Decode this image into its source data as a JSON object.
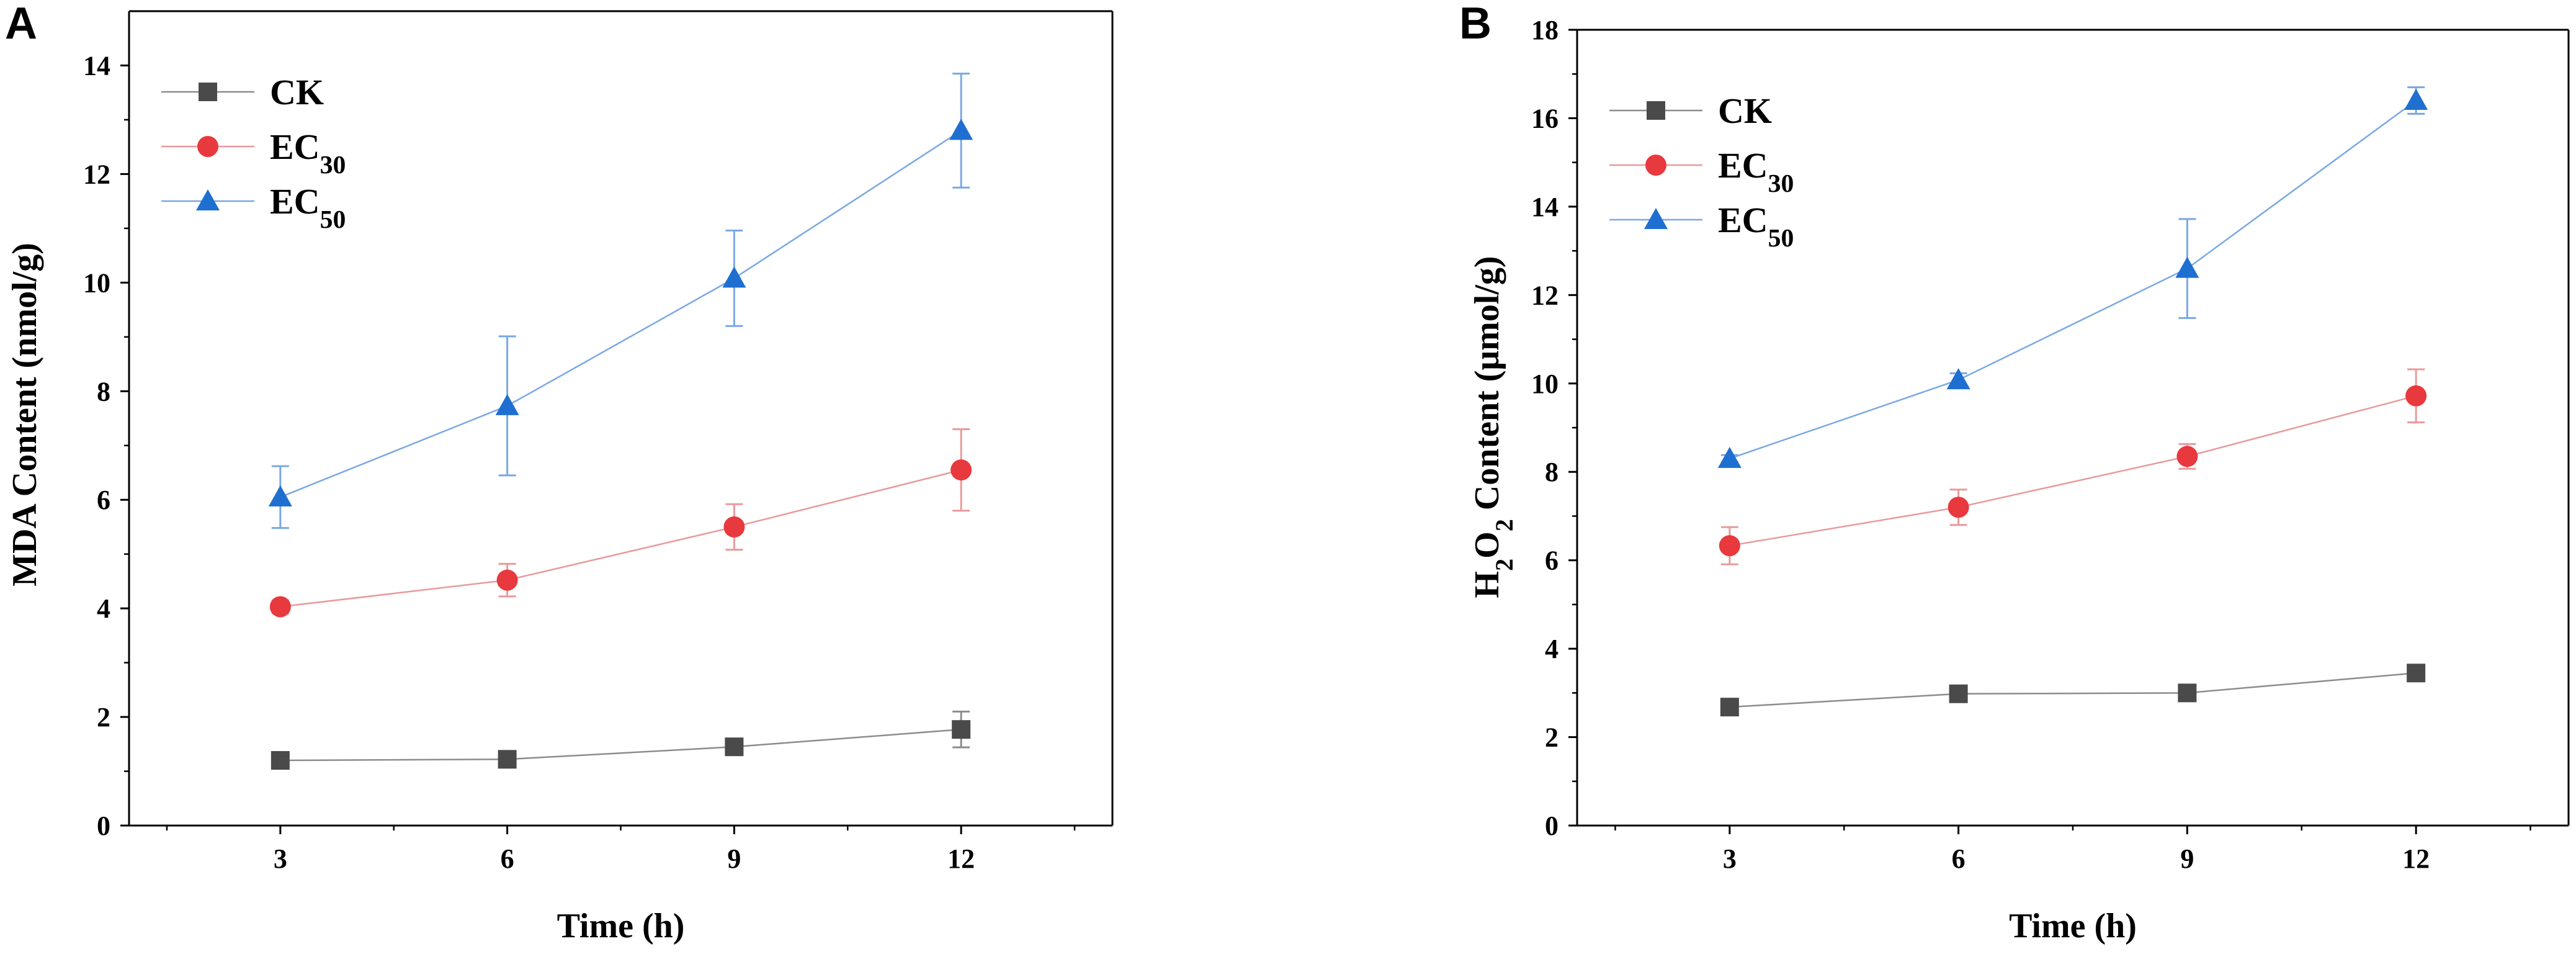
{
  "chart_data": [
    {
      "panel": "A",
      "type": "line",
      "xlabel": "Time (h)",
      "ylabel": "MDA Content (nmol/g)",
      "ylabel_parts": [
        {
          "t": "MDA Content (nmol/g)",
          "sub": false
        }
      ],
      "x": [
        3,
        6,
        9,
        12
      ],
      "xticks": [
        3,
        6,
        9,
        12
      ],
      "xlim": [
        1,
        14
      ],
      "ylim": [
        0,
        15
      ],
      "yticks": [
        0,
        2,
        4,
        6,
        8,
        10,
        12,
        14
      ],
      "legend_position": "top-left",
      "series": [
        {
          "name": "CK",
          "base": "CK",
          "sub": "",
          "marker": "square",
          "color": "#4a4a4a",
          "line_color": "#8c8c8c",
          "values": [
            1.2,
            1.22,
            1.45,
            1.77
          ],
          "errors": [
            0.05,
            0.05,
            0.07,
            0.33
          ]
        },
        {
          "name": "EC30",
          "base": "EC",
          "sub": "30",
          "marker": "circle",
          "color": "#e8393e",
          "line_color": "#e89a9c",
          "values": [
            4.03,
            4.52,
            5.5,
            6.55
          ],
          "errors": [
            0.12,
            0.3,
            0.42,
            0.75
          ]
        },
        {
          "name": "EC50",
          "base": "EC",
          "sub": "50",
          "marker": "triangle",
          "color": "#1f6fd1",
          "line_color": "#7aa8e2",
          "values": [
            6.05,
            7.73,
            10.08,
            12.8
          ],
          "errors": [
            0.57,
            1.28,
            0.88,
            1.05
          ]
        }
      ]
    },
    {
      "panel": "B",
      "type": "line",
      "xlabel": "Time (h)",
      "ylabel": "H2O2 Content (μmol/g)",
      "ylabel_parts": [
        {
          "t": "H",
          "sub": false
        },
        {
          "t": "2",
          "sub": true
        },
        {
          "t": "O",
          "sub": false
        },
        {
          "t": "2",
          "sub": true
        },
        {
          "t": " Content (μmol/g)",
          "sub": false
        }
      ],
      "x": [
        3,
        6,
        9,
        12
      ],
      "xticks": [
        3,
        6,
        9,
        12
      ],
      "xlim": [
        1,
        14
      ],
      "ylim": [
        0,
        18
      ],
      "yticks": [
        0,
        2,
        4,
        6,
        8,
        10,
        12,
        14,
        16,
        18
      ],
      "legend_position": "top-left",
      "series": [
        {
          "name": "CK",
          "base": "CK",
          "sub": "",
          "marker": "square",
          "color": "#4a4a4a",
          "line_color": "#8c8c8c",
          "values": [
            2.68,
            2.98,
            3.0,
            3.45
          ],
          "errors": [
            0.05,
            0.05,
            0.05,
            0.07
          ]
        },
        {
          "name": "EC30",
          "base": "EC",
          "sub": "30",
          "marker": "circle",
          "color": "#e8393e",
          "line_color": "#e89a9c",
          "values": [
            6.33,
            7.2,
            8.35,
            9.72
          ],
          "errors": [
            0.42,
            0.4,
            0.28,
            0.6
          ]
        },
        {
          "name": "EC50",
          "base": "EC",
          "sub": "50",
          "marker": "triangle",
          "color": "#1f6fd1",
          "line_color": "#7aa8e2",
          "values": [
            8.3,
            10.08,
            12.6,
            16.4
          ],
          "errors": [
            0.08,
            0.15,
            1.12,
            0.3
          ]
        }
      ]
    }
  ]
}
